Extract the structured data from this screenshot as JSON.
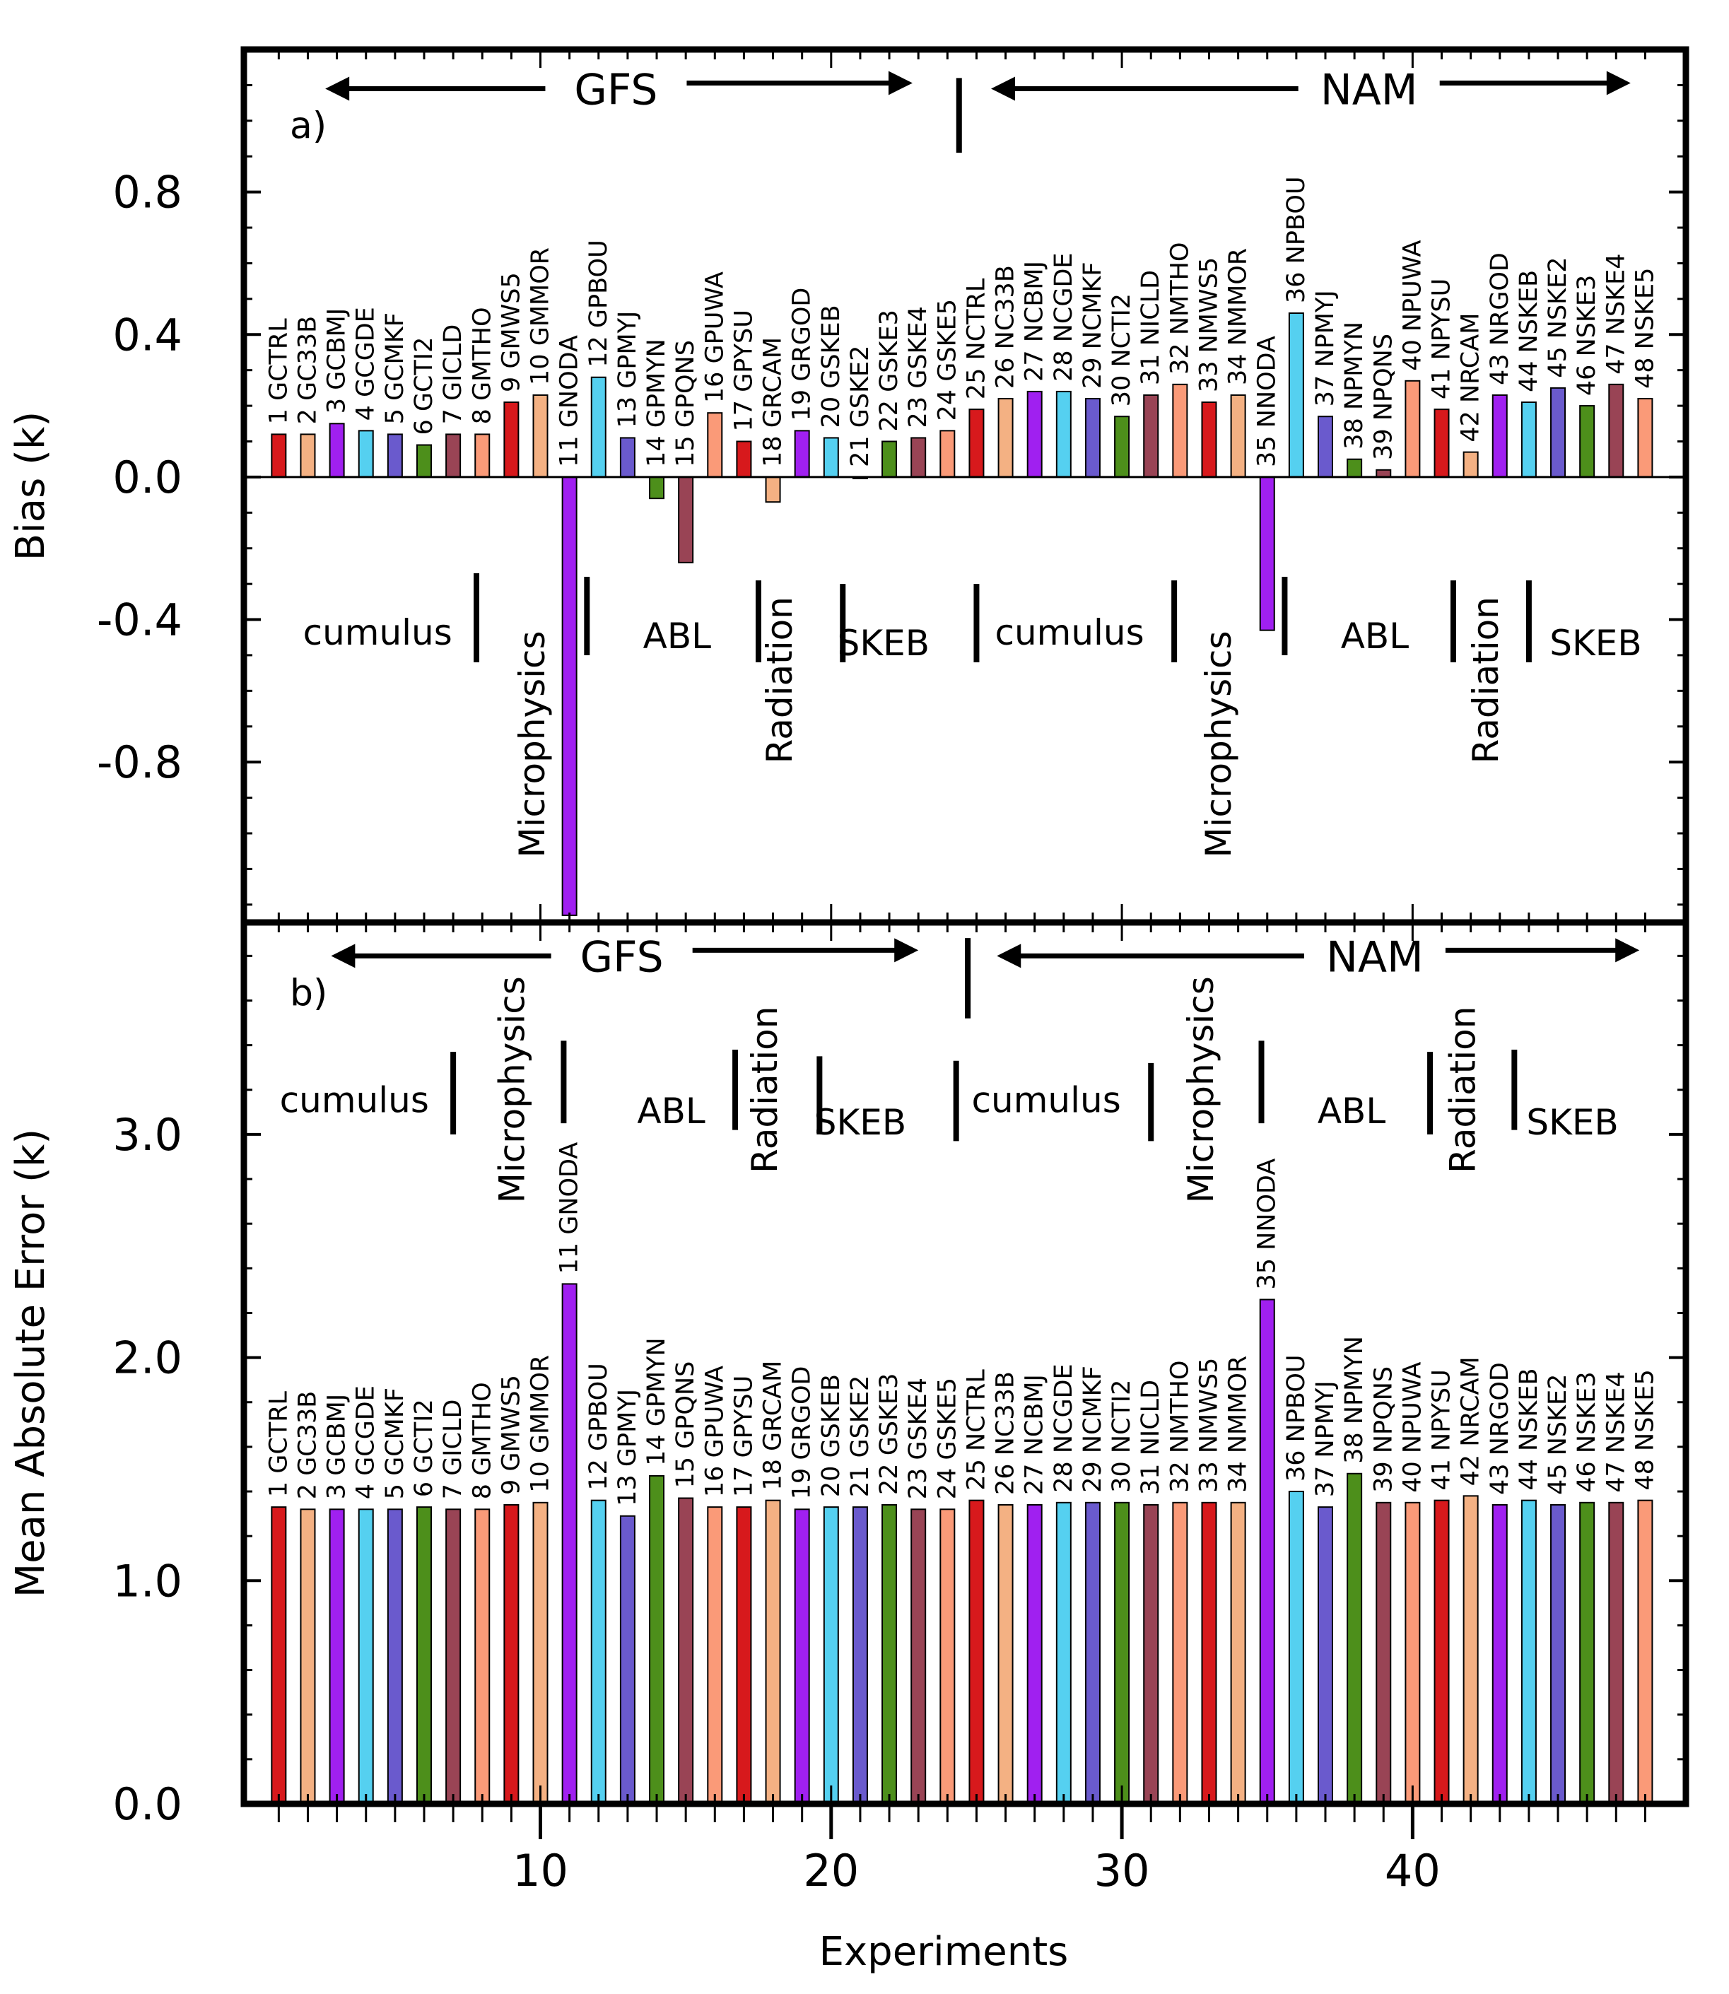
{
  "chart_data": [
    {
      "type": "bar",
      "panel_label": "a)",
      "ylabel": "Bias (k)",
      "ylim": [
        -1.25,
        1.2
      ],
      "yticks": [
        -0.8,
        -0.4,
        0.0,
        0.4,
        0.8
      ],
      "ytick_labels": [
        "-0.8",
        "-0.4",
        "0.0",
        "0.4",
        "0.8"
      ],
      "x": [
        1,
        2,
        3,
        4,
        5,
        6,
        7,
        8,
        9,
        10,
        11,
        12,
        13,
        14,
        15,
        16,
        17,
        18,
        19,
        20,
        21,
        22,
        23,
        24,
        25,
        26,
        27,
        28,
        29,
        30,
        31,
        32,
        33,
        34,
        35,
        36,
        37,
        38,
        39,
        40,
        41,
        42,
        43,
        44,
        45,
        46,
        47,
        48
      ],
      "categories": [
        "1 GCTRL",
        "2 GC33B",
        "3 GCBMJ",
        "4 GCGDE",
        "5 GCMKF",
        "6 GCTI2",
        "7 GICLD",
        "8 GMTHO",
        "9 GMWS5",
        "10 GMMOR",
        "11 GNODA",
        "12 GPBOU",
        "13 GPMYJ",
        "14 GPMYN",
        "15 GPQNS",
        "16 GPUWA",
        "17 GPYSU",
        "18 GRCAM",
        "19 GRGOD",
        "20 GSKEB",
        "21 GSKE2",
        "22 GSKE3",
        "23 GSKE4",
        "24 GSKE5",
        "25 NCTRL",
        "26 NC33B",
        "27 NCBMJ",
        "28 NCGDE",
        "29 NCMKF",
        "30 NCTI2",
        "31 NICLD",
        "32 NMTHO",
        "33 NMWS5",
        "34 NMMOR",
        "35 NNODA",
        "36 NPBOU",
        "37 NPMYJ",
        "38 NPMYN",
        "39 NPQNS",
        "40 NPUWA",
        "41 NPYSU",
        "42 NRCAM",
        "43 NRGOD",
        "44 NSKEB",
        "45 NSKE2",
        "46 NSKE3",
        "47 NSKE4",
        "48 NSKE5"
      ],
      "values": [
        0.12,
        0.12,
        0.15,
        0.13,
        0.12,
        0.09,
        0.12,
        0.12,
        0.21,
        0.23,
        -1.23,
        0.28,
        0.11,
        -0.06,
        -0.24,
        0.18,
        0.1,
        -0.07,
        0.13,
        0.11,
        0.0,
        0.1,
        0.11,
        0.13,
        0.19,
        0.22,
        0.24,
        0.24,
        0.22,
        0.17,
        0.23,
        0.26,
        0.21,
        0.23,
        -0.43,
        0.46,
        0.17,
        0.05,
        0.02,
        0.27,
        0.19,
        0.07,
        0.23,
        0.21,
        0.25,
        0.2,
        0.26,
        0.22
      ],
      "group_labels": [
        {
          "text": "cumulus",
          "at": 4.4,
          "y": -0.47,
          "rotate": false
        },
        {
          "text": "Microphysics",
          "at": 9.7,
          "y": -0.75,
          "rotate": true
        },
        {
          "text": "ABL",
          "at": 14.7,
          "y": -0.48,
          "rotate": false
        },
        {
          "text": "Radiation",
          "at": 18.2,
          "y": -0.57,
          "rotate": true
        },
        {
          "text": "SKEB",
          "at": 21.8,
          "y": -0.5,
          "rotate": false
        },
        {
          "text": "cumulus",
          "at": 28.2,
          "y": -0.47,
          "rotate": false
        },
        {
          "text": "Microphysics",
          "at": 33.3,
          "y": -0.75,
          "rotate": true
        },
        {
          "text": "ABL",
          "at": 38.7,
          "y": -0.48,
          "rotate": false
        },
        {
          "text": "Radiation",
          "at": 42.5,
          "y": -0.57,
          "rotate": true
        },
        {
          "text": "SKEB",
          "at": 46.3,
          "y": -0.5,
          "rotate": false
        }
      ],
      "separators": [
        {
          "at": 7.8,
          "y1": -0.27,
          "y2": -0.52
        },
        {
          "at": 11.6,
          "y1": -0.28,
          "y2": -0.5
        },
        {
          "at": 17.5,
          "y1": -0.29,
          "y2": -0.52
        },
        {
          "at": 20.4,
          "y1": -0.3,
          "y2": -0.52
        },
        {
          "at": 25.0,
          "y1": -0.3,
          "y2": -0.52
        },
        {
          "at": 31.8,
          "y1": -0.29,
          "y2": -0.52
        },
        {
          "at": 35.6,
          "y1": -0.28,
          "y2": -0.5
        },
        {
          "at": 41.4,
          "y1": -0.29,
          "y2": -0.52
        },
        {
          "at": 44.0,
          "y1": -0.29,
          "y2": -0.52
        }
      ],
      "models": [
        {
          "text": "GFS",
          "at": 12.6,
          "arrow_from": 2.6,
          "arrow_to": 22.8
        },
        {
          "text": "NAM",
          "at": 38.5,
          "arrow_from": 25.5,
          "arrow_to": 47.5
        }
      ],
      "model_divider": {
        "at": 24.4,
        "y1": 1.12,
        "y2": 0.91
      },
      "arrow_y": 1.09
    },
    {
      "type": "bar",
      "panel_label": "b)",
      "ylabel": "Mean Absolute Error (k)",
      "ylim": [
        0.0,
        3.95
      ],
      "yticks": [
        0.0,
        1.0,
        2.0,
        3.0
      ],
      "ytick_labels": [
        "0.0",
        "1.0",
        "2.0",
        "3.0"
      ],
      "x": [
        1,
        2,
        3,
        4,
        5,
        6,
        7,
        8,
        9,
        10,
        11,
        12,
        13,
        14,
        15,
        16,
        17,
        18,
        19,
        20,
        21,
        22,
        23,
        24,
        25,
        26,
        27,
        28,
        29,
        30,
        31,
        32,
        33,
        34,
        35,
        36,
        37,
        38,
        39,
        40,
        41,
        42,
        43,
        44,
        45,
        46,
        47,
        48
      ],
      "categories": [
        "1 GCTRL",
        "2 GC33B",
        "3 GCBMJ",
        "4 GCGDE",
        "5 GCMKF",
        "6 GCTI2",
        "7 GICLD",
        "8 GMTHO",
        "9 GMWS5",
        "10 GMMOR",
        "11 GNODA",
        "12 GPBOU",
        "13 GPMYJ",
        "14 GPMYN",
        "15 GPQNS",
        "16 GPUWA",
        "17 GPYSU",
        "18 GRCAM",
        "19 GRGOD",
        "20 GSKEB",
        "21 GSKE2",
        "22 GSKE3",
        "23 GSKE4",
        "24 GSKE5",
        "25 NCTRL",
        "26 NC33B",
        "27 NCBMJ",
        "28 NCGDE",
        "29 NCMKF",
        "30 NCTI2",
        "31 NICLD",
        "32 NMTHO",
        "33 NMWS5",
        "34 NMMOR",
        "35 NNODA",
        "36 NPBOU",
        "37 NPMYJ",
        "38 NPMYN",
        "39 NPQNS",
        "40 NPUWA",
        "41 NPYSU",
        "42 NRCAM",
        "43 NRGOD",
        "44 NSKEB",
        "45 NSKE2",
        "46 NSKE3",
        "47 NSKE4",
        "48 NSKE5"
      ],
      "values": [
        1.33,
        1.32,
        1.32,
        1.32,
        1.32,
        1.33,
        1.32,
        1.32,
        1.34,
        1.35,
        2.33,
        1.36,
        1.29,
        1.47,
        1.37,
        1.33,
        1.33,
        1.36,
        1.32,
        1.33,
        1.33,
        1.34,
        1.32,
        1.32,
        1.36,
        1.34,
        1.34,
        1.35,
        1.35,
        1.35,
        1.34,
        1.35,
        1.35,
        1.35,
        2.26,
        1.4,
        1.33,
        1.48,
        1.35,
        1.35,
        1.36,
        1.38,
        1.34,
        1.36,
        1.34,
        1.35,
        1.35,
        1.36
      ],
      "group_labels": [
        {
          "text": "cumulus",
          "at": 3.6,
          "y": 3.1,
          "rotate": false
        },
        {
          "text": "Microphysics",
          "at": 9.0,
          "y": 3.2,
          "rotate": true
        },
        {
          "text": "ABL",
          "at": 14.5,
          "y": 3.05,
          "rotate": false
        },
        {
          "text": "Radiation",
          "at": 17.7,
          "y": 3.2,
          "rotate": true
        },
        {
          "text": "SKEB",
          "at": 21.0,
          "y": 3.0,
          "rotate": false
        },
        {
          "text": "cumulus",
          "at": 27.4,
          "y": 3.1,
          "rotate": false
        },
        {
          "text": "Microphysics",
          "at": 32.7,
          "y": 3.2,
          "rotate": true
        },
        {
          "text": "ABL",
          "at": 37.9,
          "y": 3.05,
          "rotate": false
        },
        {
          "text": "Radiation",
          "at": 41.7,
          "y": 3.2,
          "rotate": true
        },
        {
          "text": "SKEB",
          "at": 45.5,
          "y": 3.0,
          "rotate": false
        }
      ],
      "separators": [
        {
          "at": 7.0,
          "y1": 3.37,
          "y2": 3.0
        },
        {
          "at": 10.8,
          "y1": 3.42,
          "y2": 3.05
        },
        {
          "at": 16.7,
          "y1": 3.38,
          "y2": 3.02
        },
        {
          "at": 19.6,
          "y1": 3.35,
          "y2": 3.0
        },
        {
          "at": 24.3,
          "y1": 3.33,
          "y2": 2.97
        },
        {
          "at": 31.0,
          "y1": 3.32,
          "y2": 2.97
        },
        {
          "at": 34.8,
          "y1": 3.42,
          "y2": 3.05
        },
        {
          "at": 40.6,
          "y1": 3.37,
          "y2": 3.0
        },
        {
          "at": 43.5,
          "y1": 3.38,
          "y2": 3.02
        }
      ],
      "models": [
        {
          "text": "GFS",
          "at": 12.8,
          "arrow_from": 2.8,
          "arrow_to": 23.0
        },
        {
          "text": "NAM",
          "at": 38.7,
          "arrow_from": 25.7,
          "arrow_to": 47.8
        }
      ],
      "model_divider": {
        "at": 24.7,
        "y1": 3.88,
        "y2": 3.52
      },
      "arrow_y": 3.8
    }
  ],
  "x_axis": {
    "label": "Experiments",
    "xlim": [
      -0.2,
      49.4
    ],
    "ticks": [
      10,
      20,
      30,
      40
    ],
    "tick_labels": [
      "10",
      "20",
      "30",
      "40"
    ]
  },
  "palette": [
    "#d7191c",
    "#f4b183",
    "#a020f0",
    "#55d0f0",
    "#6a5acd",
    "#4d8f1b",
    "#994455",
    "#fa9a78"
  ]
}
